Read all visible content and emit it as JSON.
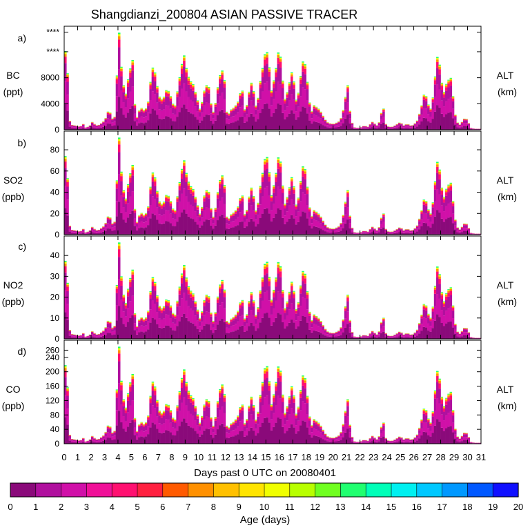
{
  "chart_data": {
    "type": "bar",
    "title": "Shangdianzi_200804 ASIAN PASSIVE TRACER",
    "xlabel": "Days past 0 UTC on 20080401",
    "xticks": [
      "0",
      "1",
      "2",
      "3",
      "4",
      "5",
      "6",
      "7",
      "8",
      "9",
      "10",
      "11",
      "12",
      "13",
      "14",
      "15",
      "16",
      "17",
      "18",
      "19",
      "20",
      "21",
      "22",
      "23",
      "24",
      "25",
      "26",
      "27",
      "28",
      "29",
      "30",
      "31"
    ],
    "xlim": [
      0,
      31
    ],
    "right_label": [
      "ALT",
      "(km)"
    ],
    "colorbar": {
      "label": "Age (days)",
      "ticks": [
        "0",
        "1",
        "2",
        "3",
        "4",
        "5",
        "6",
        "7",
        "8",
        "9",
        "10",
        "11",
        "12",
        "13",
        "14",
        "15",
        "16",
        "17",
        "18",
        "19",
        "20"
      ],
      "colors": [
        "#8a0a7a",
        "#b0109e",
        "#d010a8",
        "#f01098",
        "#ff1070",
        "#ff2040",
        "#ff5a00",
        "#ff9000",
        "#ffc000",
        "#ffe400",
        "#f0ff00",
        "#b8ff00",
        "#70ff20",
        "#20ff70",
        "#00ffb8",
        "#00f0f0",
        "#00c8ff",
        "#0098ff",
        "#0058ff",
        "#1010ff",
        "#7a10ff"
      ]
    },
    "profile": [
      [
        0,
        0.78
      ],
      [
        0.2,
        0.78
      ],
      [
        0.35,
        0.12
      ],
      [
        0.5,
        0.05
      ],
      [
        0.9,
        0.04
      ],
      [
        1.2,
        0.03
      ],
      [
        1.4,
        0.06
      ],
      [
        1.6,
        0.02
      ],
      [
        1.9,
        0.04
      ],
      [
        2.1,
        0.08
      ],
      [
        2.3,
        0.05
      ],
      [
        2.5,
        0.04
      ],
      [
        2.7,
        0.06
      ],
      [
        2.9,
        0.08
      ],
      [
        3.1,
        0.12
      ],
      [
        3.3,
        0.2
      ],
      [
        3.5,
        0.15
      ],
      [
        3.7,
        0.06
      ],
      [
        3.8,
        0.2
      ],
      [
        4.0,
        0.78
      ],
      [
        4.1,
        1.0
      ],
      [
        4.3,
        0.5
      ],
      [
        4.6,
        0.35
      ],
      [
        4.8,
        0.55
      ],
      [
        5.0,
        0.65
      ],
      [
        5.1,
        0.7
      ],
      [
        5.2,
        0.3
      ],
      [
        5.4,
        0.12
      ],
      [
        5.6,
        0.2
      ],
      [
        5.8,
        0.22
      ],
      [
        6.0,
        0.18
      ],
      [
        6.3,
        0.3
      ],
      [
        6.5,
        0.6
      ],
      [
        6.6,
        0.62
      ],
      [
        6.8,
        0.55
      ],
      [
        7.0,
        0.35
      ],
      [
        7.2,
        0.3
      ],
      [
        7.4,
        0.32
      ],
      [
        7.6,
        0.4
      ],
      [
        7.8,
        0.38
      ],
      [
        8.0,
        0.3
      ],
      [
        8.2,
        0.2
      ],
      [
        8.5,
        0.45
      ],
      [
        8.7,
        0.62
      ],
      [
        8.9,
        0.75
      ],
      [
        9.1,
        0.6
      ],
      [
        9.3,
        0.5
      ],
      [
        9.6,
        0.45
      ],
      [
        9.9,
        0.3
      ],
      [
        10.1,
        0.2
      ],
      [
        10.3,
        0.3
      ],
      [
        10.5,
        0.45
      ],
      [
        10.8,
        0.42
      ],
      [
        11.0,
        0.15
      ],
      [
        11.2,
        0.22
      ],
      [
        11.5,
        0.5
      ],
      [
        11.7,
        0.6
      ],
      [
        11.9,
        0.55
      ],
      [
        12.0,
        0.2
      ],
      [
        12.2,
        0.15
      ],
      [
        12.4,
        0.2
      ],
      [
        12.6,
        0.22
      ],
      [
        12.8,
        0.25
      ],
      [
        13.0,
        0.3
      ],
      [
        13.2,
        0.45
      ],
      [
        13.4,
        0.2
      ],
      [
        13.6,
        0.25
      ],
      [
        13.8,
        0.42
      ],
      [
        14.0,
        0.5
      ],
      [
        14.2,
        0.22
      ],
      [
        14.4,
        0.3
      ],
      [
        14.6,
        0.5
      ],
      [
        14.8,
        0.65
      ],
      [
        15.0,
        0.82
      ],
      [
        15.2,
        0.7
      ],
      [
        15.4,
        0.38
      ],
      [
        15.6,
        0.5
      ],
      [
        15.8,
        0.65
      ],
      [
        16.0,
        0.85
      ],
      [
        16.2,
        0.55
      ],
      [
        16.4,
        0.3
      ],
      [
        16.6,
        0.38
      ],
      [
        16.8,
        0.5
      ],
      [
        17.0,
        0.62
      ],
      [
        17.2,
        0.28
      ],
      [
        17.4,
        0.35
      ],
      [
        17.6,
        0.55
      ],
      [
        17.8,
        0.72
      ],
      [
        18.0,
        0.6
      ],
      [
        18.2,
        0.3
      ],
      [
        18.4,
        0.18
      ],
      [
        18.6,
        0.25
      ],
      [
        18.8,
        0.22
      ],
      [
        19.0,
        0.2
      ],
      [
        19.2,
        0.15
      ],
      [
        19.5,
        0.08
      ],
      [
        19.8,
        0.06
      ],
      [
        20.1,
        0.06
      ],
      [
        20.4,
        0.08
      ],
      [
        20.6,
        0.12
      ],
      [
        20.8,
        0.22
      ],
      [
        21.0,
        0.4
      ],
      [
        21.1,
        0.45
      ],
      [
        21.3,
        0.1
      ],
      [
        21.6,
        0.02
      ],
      [
        22.0,
        0.02
      ],
      [
        22.3,
        0.04
      ],
      [
        22.6,
        0.03
      ],
      [
        22.9,
        0.08
      ],
      [
        23.1,
        0.06
      ],
      [
        23.3,
        0.04
      ],
      [
        23.5,
        0.1
      ],
      [
        23.7,
        0.26
      ],
      [
        23.9,
        0.06
      ],
      [
        24.1,
        0.03
      ],
      [
        24.4,
        0.03
      ],
      [
        24.7,
        0.05
      ],
      [
        25.0,
        0.08
      ],
      [
        25.2,
        0.04
      ],
      [
        25.5,
        0.06
      ],
      [
        25.8,
        0.04
      ],
      [
        26.0,
        0.05
      ],
      [
        26.3,
        0.1
      ],
      [
        26.6,
        0.25
      ],
      [
        26.8,
        0.38
      ],
      [
        27.0,
        0.3
      ],
      [
        27.2,
        0.18
      ],
      [
        27.4,
        0.3
      ],
      [
        27.6,
        0.55
      ],
      [
        27.8,
        0.78
      ],
      [
        28.0,
        0.55
      ],
      [
        28.2,
        0.35
      ],
      [
        28.4,
        0.45
      ],
      [
        28.6,
        0.5
      ],
      [
        28.8,
        0.52
      ],
      [
        29.0,
        0.2
      ],
      [
        29.2,
        0.08
      ],
      [
        29.4,
        0.05
      ],
      [
        29.6,
        0.08
      ],
      [
        29.8,
        0.12
      ],
      [
        30.0,
        0.1
      ],
      [
        30.2,
        0.02
      ],
      [
        30.5,
        0.01
      ],
      [
        31,
        0.01
      ]
    ],
    "panels": [
      {
        "tag": "a)",
        "species": "BC",
        "unit": "(ppt)",
        "ylim": [
          0,
          15500
        ],
        "yticks": [
          0,
          4000,
          8000,
          12000,
          15000
        ],
        "yticklabels": [
          "0",
          "4000",
          "8000",
          "****",
          "****"
        ],
        "xtick_labels": false
      },
      {
        "tag": "b)",
        "species": "SO2",
        "unit": "(ppb)",
        "ylim": [
          0,
          95
        ],
        "yticks": [
          0,
          20,
          40,
          60,
          80
        ],
        "yticklabels": [
          "0",
          "20",
          "40",
          "60",
          "80"
        ],
        "xtick_labels": false
      },
      {
        "tag": "c)",
        "species": "NO2",
        "unit": "(ppb)",
        "ylim": [
          0,
          48
        ],
        "yticks": [
          0,
          10,
          20,
          30,
          40
        ],
        "yticklabels": [
          "0",
          "10",
          "20",
          "30",
          "40"
        ],
        "xtick_labels": false
      },
      {
        "tag": "d)",
        "species": "CO",
        "unit": "(ppb)",
        "ylim": [
          0,
          280
        ],
        "yticks": [
          0,
          40,
          80,
          120,
          160,
          200,
          240,
          260
        ],
        "yticklabels": [
          "0",
          "40",
          "80",
          "120",
          "160",
          "200",
          "240",
          "260"
        ],
        "xtick_labels": true
      }
    ]
  }
}
